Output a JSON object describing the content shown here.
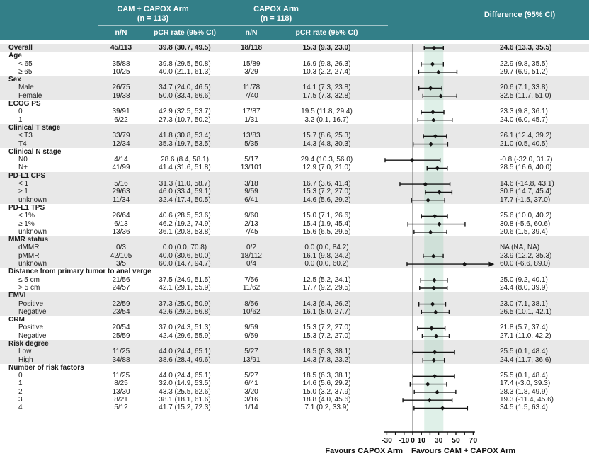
{
  "header": {
    "arm1_title": "CAM + CAPOX Arm",
    "arm1_n": "(n = 113)",
    "arm2_title": "CAPOX Arm",
    "arm2_n": "(n = 118)",
    "diff_title": "Difference (95% CI)",
    "col_nN": "n/N",
    "col_pcr": "pCR rate (95% CI)"
  },
  "colors": {
    "header_teal": "#337f88",
    "row_stripe": "#e8e8e8",
    "shaded_band": "rgba(150,205,178,0.30)",
    "ci_line": "#151515",
    "zero_line": "#666666"
  },
  "chart_data": {
    "type": "forest",
    "xlabel_ticks": [
      -30,
      -10,
      0,
      10,
      30,
      50,
      70
    ],
    "minor_ticks": [
      -30,
      -20,
      -10,
      0,
      10,
      20,
      30,
      40,
      50,
      60,
      70
    ],
    "axis_range": [
      -33,
      72
    ],
    "shaded_band": [
      13.3,
      35.5
    ],
    "footer": {
      "left": "Favours CAPOX Arm",
      "right": "Favours CAM + CAPOX Arm"
    },
    "rows": [
      {
        "t": "overall",
        "band": "g",
        "label": "Overall",
        "n1": "45/113",
        "p1": "39.8 (30.7, 49.5)",
        "n2": "18/118",
        "p2": "15.3 (9.3, 23.0)",
        "d": "24.6 (13.3, 35.5)",
        "est": 24.6,
        "lo": 13.3,
        "hi": 35.5
      },
      {
        "t": "group",
        "band": "w",
        "label": "Age"
      },
      {
        "t": "item",
        "band": "w",
        "label": "< 65",
        "n1": "35/88",
        "p1": "39.8 (29.5, 50.8)",
        "n2": "15/89",
        "p2": "16.9 (9.8, 26.3)",
        "d": "22.9 (9.8, 35.5)",
        "est": 22.9,
        "lo": 9.8,
        "hi": 35.5
      },
      {
        "t": "item",
        "band": "w",
        "label": "≥ 65",
        "n1": "10/25",
        "p1": "40.0 (21.1, 61.3)",
        "n2": "3/29",
        "p2": "10.3 (2.2, 27.4)",
        "d": "29.7 (6.9, 51.2)",
        "est": 29.7,
        "lo": 6.9,
        "hi": 51.2
      },
      {
        "t": "group",
        "band": "g",
        "label": "Sex"
      },
      {
        "t": "item",
        "band": "g",
        "label": "Male",
        "n1": "26/75",
        "p1": "34.7 (24.0, 46.5)",
        "n2": "11/78",
        "p2": "14.1 (7.3, 23.8)",
        "d": "20.6 (7.1, 33.8)",
        "est": 20.6,
        "lo": 7.1,
        "hi": 33.8
      },
      {
        "t": "item",
        "band": "g",
        "label": "Female",
        "n1": "19/38",
        "p1": "50.0 (33.4, 66.6)",
        "n2": "7/40",
        "p2": "17.5 (7.3, 32.8)",
        "d": "32.5 (11.7, 51.0)",
        "est": 32.5,
        "lo": 11.7,
        "hi": 51.0
      },
      {
        "t": "group",
        "band": "w",
        "label": "ECOG PS"
      },
      {
        "t": "item",
        "band": "w",
        "label": "0",
        "n1": "39/91",
        "p1": "42.9 (32.5, 53.7)",
        "n2": "17/87",
        "p2": "19.5 (11.8, 29.4)",
        "d": "23.3 (9.8, 36.1)",
        "est": 23.3,
        "lo": 9.8,
        "hi": 36.1
      },
      {
        "t": "item",
        "band": "w",
        "label": "1",
        "n1": "6/22",
        "p1": "27.3 (10.7, 50.2)",
        "n2": "1/31",
        "p2": "3.2 (0.1, 16.7)",
        "d": "24.0 (6.0, 45.7)",
        "est": 24.0,
        "lo": 6.0,
        "hi": 45.7
      },
      {
        "t": "group",
        "band": "g",
        "label": "Clinical T stage"
      },
      {
        "t": "item",
        "band": "g",
        "label": "≤ T3",
        "n1": "33/79",
        "p1": "41.8 (30.8, 53.4)",
        "n2": "13/83",
        "p2": "15.7 (8.6, 25.3)",
        "d": "26.1 (12.4, 39.2)",
        "est": 26.1,
        "lo": 12.4,
        "hi": 39.2
      },
      {
        "t": "item",
        "band": "g",
        "label": "T4",
        "n1": "12/34",
        "p1": "35.3 (19.7, 53.5)",
        "n2": "5/35",
        "p2": "14.3 (4.8, 30.3)",
        "d": "21.0 (0.5, 40.5)",
        "est": 21.0,
        "lo": 0.5,
        "hi": 40.5
      },
      {
        "t": "group",
        "band": "w",
        "label": "Clinical N stage"
      },
      {
        "t": "item",
        "band": "w",
        "label": "N0",
        "n1": "4/14",
        "p1": "28.6 (8.4, 58.1)",
        "n2": "5/17",
        "p2": "29.4 (10.3, 56.0)",
        "d": "-0.8 (-32.0, 31.7)",
        "est": -0.8,
        "lo": -32.0,
        "hi": 31.7
      },
      {
        "t": "item",
        "band": "w",
        "label": "N+",
        "n1": "41/99",
        "p1": "41.4 (31.6, 51.8)",
        "n2": "13/101",
        "p2": "12.9 (7.0, 21.0)",
        "d": "28.5 (16.6, 40.0)",
        "est": 28.5,
        "lo": 16.6,
        "hi": 40.0
      },
      {
        "t": "group",
        "band": "g",
        "label": "PD-L1 CPS"
      },
      {
        "t": "item",
        "band": "g",
        "label": "< 1",
        "n1": "5/16",
        "p1": "31.3 (11.0, 58.7)",
        "n2": "3/18",
        "p2": "16.7 (3.6, 41.4)",
        "d": "14.6 (-14.8, 43.1)",
        "est": 14.6,
        "lo": -14.8,
        "hi": 43.1
      },
      {
        "t": "item",
        "band": "g",
        "label": "≥ 1",
        "n1": "29/63",
        "p1": "46.0 (33.4, 59.1)",
        "n2": "9/59",
        "p2": "15.3 (7.2, 27.0)",
        "d": "30.8 (14.7, 45.4)",
        "est": 30.8,
        "lo": 14.7,
        "hi": 45.4
      },
      {
        "t": "item",
        "band": "g",
        "label": "unknown",
        "n1": "11/34",
        "p1": "32.4 (17.4, 50.5)",
        "n2": "6/41",
        "p2": "14.6 (5.6, 29.2)",
        "d": "17.7 (-1.5, 37.0)",
        "est": 17.7,
        "lo": -1.5,
        "hi": 37.0
      },
      {
        "t": "group",
        "band": "w",
        "label": "PD-L1 TPS"
      },
      {
        "t": "item",
        "band": "w",
        "label": "< 1%",
        "n1": "26/64",
        "p1": "40.6 (28.5, 53.6)",
        "n2": "9/60",
        "p2": "15.0 (7.1, 26.6)",
        "d": "25.6 (10.0, 40.2)",
        "est": 25.6,
        "lo": 10.0,
        "hi": 40.2
      },
      {
        "t": "item",
        "band": "w",
        "label": "≥ 1%",
        "n1": "6/13",
        "p1": "46.2 (19.2, 74.9)",
        "n2": "2/13",
        "p2": "15.4 (1.9, 45.4)",
        "d": "30.8 (-5.6, 60.6)",
        "est": 30.8,
        "lo": -5.6,
        "hi": 60.6
      },
      {
        "t": "item",
        "band": "w",
        "label": "unknown",
        "n1": "13/36",
        "p1": "36.1 (20.8, 53.8)",
        "n2": "7/45",
        "p2": "15.6 (6.5, 29.5)",
        "d": "20.6 (1.5, 39.4)",
        "est": 20.6,
        "lo": 1.5,
        "hi": 39.4
      },
      {
        "t": "group",
        "band": "g",
        "label": "MMR status"
      },
      {
        "t": "item",
        "band": "g",
        "label": "dMMR",
        "n1": "0/3",
        "p1": "0.0 (0.0, 70.8)",
        "n2": "0/2",
        "p2": "0.0 (0.0, 84.2)",
        "d": "NA (NA, NA)",
        "est": null,
        "lo": null,
        "hi": null
      },
      {
        "t": "item",
        "band": "g",
        "label": "pMMR",
        "n1": "42/105",
        "p1": "40.0 (30.6, 50.0)",
        "n2": "18/112",
        "p2": "16.1 (9.8, 24.2)",
        "d": "23.9 (12.2, 35.3)",
        "est": 23.9,
        "lo": 12.2,
        "hi": 35.3
      },
      {
        "t": "item",
        "band": "g",
        "label": "unknown",
        "n1": "3/5",
        "p1": "60.0 (14.7, 94.7)",
        "n2": "0/4",
        "p2": "0.0 (0.0, 60.2)",
        "d": "60.0 (-6.6, 89.0)",
        "est": 60.0,
        "lo": -6.6,
        "hi": 89.0
      },
      {
        "t": "group",
        "band": "w",
        "label": "Distance from primary tumor to anal verge"
      },
      {
        "t": "item",
        "band": "w",
        "label": "≤ 5 cm",
        "n1": "21/56",
        "p1": "37.5 (24.9, 51.5)",
        "n2": "7/56",
        "p2": "12.5 (5.2, 24.1)",
        "d": "25.0 (9.2, 40.1)",
        "est": 25.0,
        "lo": 9.2,
        "hi": 40.1
      },
      {
        "t": "item",
        "band": "w",
        "label": "> 5 cm",
        "n1": "24/57",
        "p1": "42.1 (29.1, 55.9)",
        "n2": "11/62",
        "p2": "17.7 (9.2, 29.5)",
        "d": "24.4 (8.0, 39.9)",
        "est": 24.4,
        "lo": 8.0,
        "hi": 39.9
      },
      {
        "t": "group",
        "band": "g",
        "label": "EMVI"
      },
      {
        "t": "item",
        "band": "g",
        "label": "Positive",
        "n1": "22/59",
        "p1": "37.3 (25.0, 50.9)",
        "n2": "8/56",
        "p2": "14.3 (6.4, 26.2)",
        "d": "23.0 (7.1, 38.1)",
        "est": 23.0,
        "lo": 7.1,
        "hi": 38.1
      },
      {
        "t": "item",
        "band": "g",
        "label": "Negative",
        "n1": "23/54",
        "p1": "42.6 (29.2, 56.8)",
        "n2": "10/62",
        "p2": "16.1 (8.0, 27.7)",
        "d": "26.5 (10.1, 42.1)",
        "est": 26.5,
        "lo": 10.1,
        "hi": 42.1
      },
      {
        "t": "group",
        "band": "w",
        "label": "CRM"
      },
      {
        "t": "item",
        "band": "w",
        "label": "Positive",
        "n1": "20/54",
        "p1": "37.0 (24.3, 51.3)",
        "n2": "9/59",
        "p2": "15.3 (7.2, 27.0)",
        "d": "21.8 (5.7, 37.4)",
        "est": 21.8,
        "lo": 5.7,
        "hi": 37.4
      },
      {
        "t": "item",
        "band": "w",
        "label": "Negative",
        "n1": "25/59",
        "p1": "42.4 (29.6, 55.9)",
        "n2": "9/59",
        "p2": "15.3 (7.2, 27.0)",
        "d": "27.1 (11.0, 42.2)",
        "est": 27.1,
        "lo": 11.0,
        "hi": 42.2
      },
      {
        "t": "group",
        "band": "g",
        "label": "Risk degree"
      },
      {
        "t": "item",
        "band": "g",
        "label": "Low",
        "n1": "11/25",
        "p1": "44.0 (24.4, 65.1)",
        "n2": "5/27",
        "p2": "18.5 (6.3, 38.1)",
        "d": "25.5 (0.1, 48.4)",
        "est": 25.5,
        "lo": 0.1,
        "hi": 48.4
      },
      {
        "t": "item",
        "band": "g",
        "label": "High",
        "n1": "34/88",
        "p1": "38.6 (28.4, 49.6)",
        "n2": "13/91",
        "p2": "14.3 (7.8, 23.2)",
        "d": "24.4 (11.7, 36.6)",
        "est": 24.4,
        "lo": 11.7,
        "hi": 36.6
      },
      {
        "t": "group",
        "band": "w",
        "label": "Number of risk factors"
      },
      {
        "t": "item",
        "band": "w",
        "label": "0",
        "n1": "11/25",
        "p1": "44.0 (24.4, 65.1)",
        "n2": "5/27",
        "p2": "18.5 (6.3, 38.1)",
        "d": "25.5 (0.1, 48.4)",
        "est": 25.5,
        "lo": 0.1,
        "hi": 48.4
      },
      {
        "t": "item",
        "band": "w",
        "label": "1",
        "n1": "8/25",
        "p1": "32.0 (14.9, 53.5)",
        "n2": "6/41",
        "p2": "14.6 (5.6, 29.2)",
        "d": "17.4 (-3.0, 39.3)",
        "est": 17.4,
        "lo": -3.0,
        "hi": 39.3
      },
      {
        "t": "item",
        "band": "w",
        "label": "2",
        "n1": "13/30",
        "p1": "43.3 (25.5, 62.6)",
        "n2": "3/20",
        "p2": "15.0 (3.2, 37.9)",
        "d": "28.3 (1.8, 49.9)",
        "est": 28.3,
        "lo": 1.8,
        "hi": 49.9
      },
      {
        "t": "item",
        "band": "w",
        "label": "3",
        "n1": "8/21",
        "p1": "38.1 (18.1, 61.6)",
        "n2": "3/16",
        "p2": "18.8 (4.0, 45.6)",
        "d": "19.3 (-11.4, 45.6)",
        "est": 19.3,
        "lo": -11.4,
        "hi": 45.6
      },
      {
        "t": "item",
        "band": "w",
        "label": "4",
        "n1": "5/12",
        "p1": "41.7 (15.2, 72.3)",
        "n2": "1/14",
        "p2": "7.1 (0.2, 33.9)",
        "d": "34.5 (1.5, 63.4)",
        "est": 34.5,
        "lo": 1.5,
        "hi": 63.4
      }
    ]
  }
}
